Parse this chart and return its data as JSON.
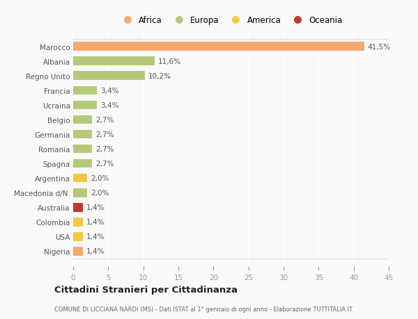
{
  "categories": [
    "Nigeria",
    "USA",
    "Colombia",
    "Australia",
    "Macedonia d/N.",
    "Argentina",
    "Spagna",
    "Romania",
    "Germania",
    "Belgio",
    "Ucraina",
    "Francia",
    "Regno Unito",
    "Albania",
    "Marocco"
  ],
  "values": [
    1.4,
    1.4,
    1.4,
    1.4,
    2.0,
    2.0,
    2.7,
    2.7,
    2.7,
    2.7,
    3.4,
    3.4,
    10.2,
    11.6,
    41.5
  ],
  "labels": [
    "1,4%",
    "1,4%",
    "1,4%",
    "1,4%",
    "2,0%",
    "2,0%",
    "2,7%",
    "2,7%",
    "2,7%",
    "2,7%",
    "3,4%",
    "3,4%",
    "10,2%",
    "11,6%",
    "41,5%"
  ],
  "colors": [
    "#f5a96e",
    "#f5c842",
    "#f5c842",
    "#c0392b",
    "#b5c97a",
    "#f5c842",
    "#b5c97a",
    "#b5c97a",
    "#b5c97a",
    "#b5c97a",
    "#b5c97a",
    "#b5c97a",
    "#b5c97a",
    "#b5c97a",
    "#f5a96e"
  ],
  "legend_labels": [
    "Africa",
    "Europa",
    "America",
    "Oceania"
  ],
  "legend_colors": [
    "#f5a96e",
    "#b5c97a",
    "#f5c842",
    "#c0392b"
  ],
  "xlim": [
    0,
    45
  ],
  "xticks": [
    0,
    5,
    10,
    15,
    20,
    25,
    30,
    35,
    40,
    45
  ],
  "title": "Cittadini Stranieri per Cittadinanza",
  "subtitle": "COMUNE DI LICCIANA NARDI (MS) - Dati ISTAT al 1° gennaio di ogni anno - Elaborazione TUTTITALIA.IT",
  "bg_color": "#f9f9f9",
  "grid_color": "#ffffff",
  "bar_height": 0.6
}
